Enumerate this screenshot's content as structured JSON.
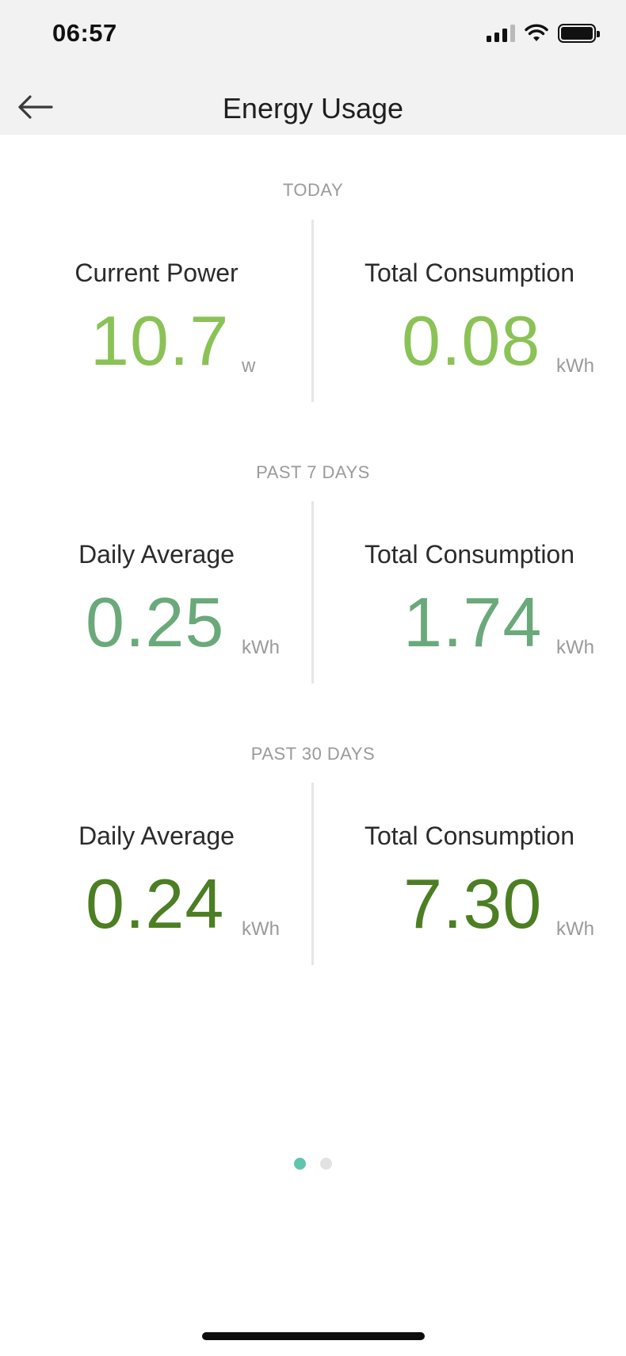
{
  "status_bar": {
    "time": "06:57"
  },
  "nav": {
    "title": "Energy Usage"
  },
  "sections": [
    {
      "label": "TODAY",
      "left": {
        "title": "Current Power",
        "value": "10.7",
        "unit": "w"
      },
      "right": {
        "title": "Total Consumption",
        "value": "0.08",
        "unit": "kWh"
      },
      "color": "#8ac256"
    },
    {
      "label": "PAST 7 DAYS",
      "left": {
        "title": "Daily Average",
        "value": "0.25",
        "unit": "kWh"
      },
      "right": {
        "title": "Total Consumption",
        "value": "1.74",
        "unit": "kWh"
      },
      "color": "#6aa97a"
    },
    {
      "label": "PAST 30 DAYS",
      "left": {
        "title": "Daily Average",
        "value": "0.24",
        "unit": "kWh"
      },
      "right": {
        "title": "Total Consumption",
        "value": "7.30",
        "unit": "kWh"
      },
      "color": "#4c7e23"
    }
  ],
  "pager": {
    "pages": 2,
    "active": 1,
    "active_color": "#5fc4b0"
  },
  "icons": {
    "back": "arrow-left-icon",
    "signal": "cellular-signal-icon",
    "wifi": "wifi-icon",
    "battery": "battery-icon"
  }
}
